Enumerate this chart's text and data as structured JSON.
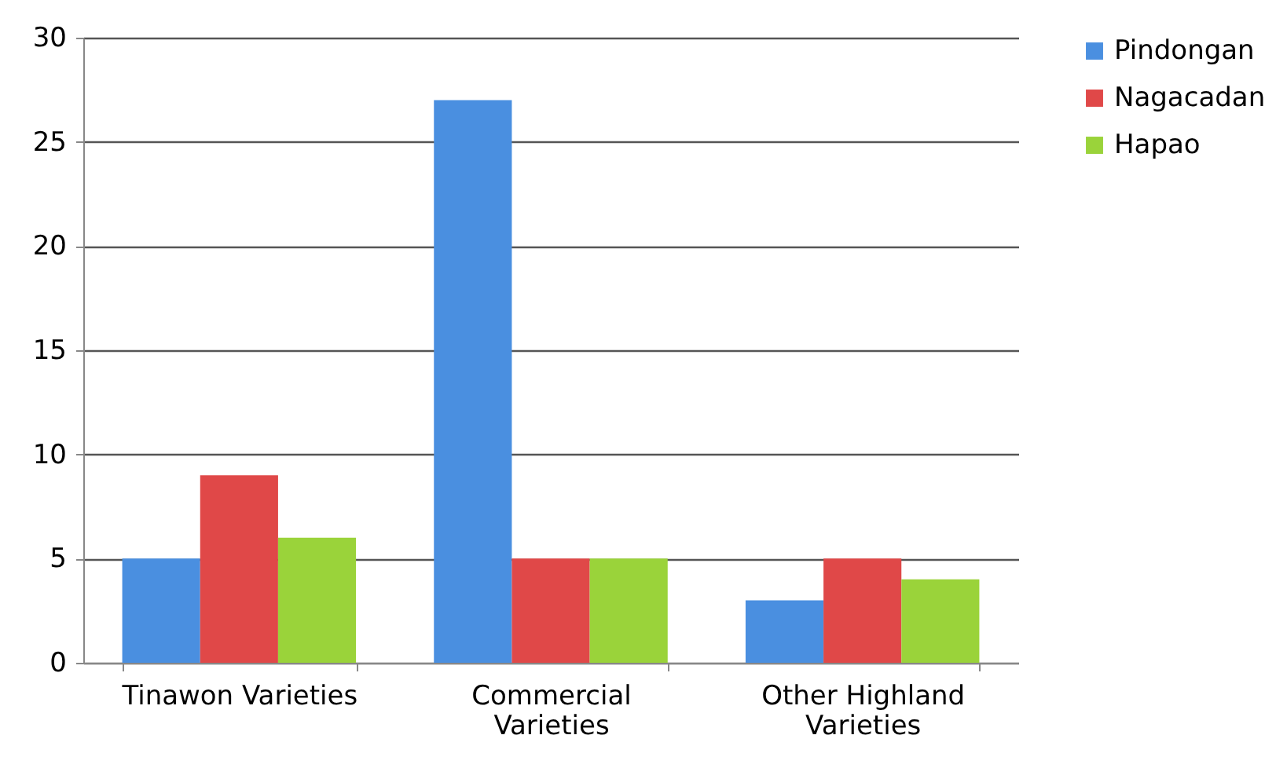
{
  "chart_data": {
    "type": "bar",
    "categories": [
      "Tinawon Varieties",
      "Commercial Varieties",
      "Other Highland Varieties"
    ],
    "series": [
      {
        "name": "Pindongan",
        "color": "#4a8fe0",
        "values": [
          5,
          27,
          3
        ]
      },
      {
        "name": "Nagacadan",
        "color": "#e04848",
        "values": [
          9,
          5,
          5
        ]
      },
      {
        "name": "Hapao",
        "color": "#9ad33a",
        "values": [
          6,
          5,
          4
        ]
      }
    ],
    "ylim": [
      0,
      30
    ],
    "yticks": [
      0,
      5,
      10,
      15,
      20,
      25,
      30
    ],
    "grid": "y",
    "legend": "right"
  }
}
